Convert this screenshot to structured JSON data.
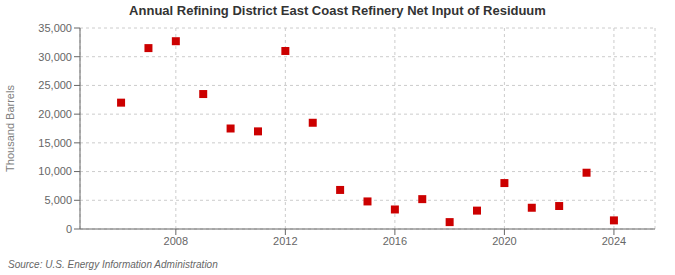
{
  "chart_data": {
    "type": "scatter",
    "title": "Annual Refining District East Coast Refinery Net Input of Residuum",
    "ylabel": "Thousand Barrels",
    "annotations": [
      "Source: U.S. Energy Information Administration"
    ],
    "x": [
      2006,
      2007,
      2008,
      2009,
      2010,
      2011,
      2012,
      2013,
      2014,
      2015,
      2016,
      2017,
      2018,
      2019,
      2020,
      2021,
      2022,
      2023,
      2024
    ],
    "values": [
      22000,
      31500,
      32700,
      23500,
      17500,
      17000,
      31000,
      18500,
      6800,
      4800,
      3400,
      5200,
      1200,
      3200,
      8000,
      3700,
      4000,
      9800,
      1500
    ],
    "color": "#cc0000",
    "marker": "square",
    "xlim": [
      2004.5,
      2025.5
    ],
    "xticks": [
      2008,
      2012,
      2016,
      2020,
      2024
    ],
    "ylim": [
      0,
      35000
    ],
    "yticks": [
      0,
      {
        "value": 5000,
        "label": "5,000"
      },
      {
        "value": 10000,
        "label": "10,000"
      },
      {
        "value": 15000,
        "label": "15,000"
      },
      {
        "value": 20000,
        "label": "20,000"
      },
      {
        "value": 25000,
        "label": "25,000"
      },
      {
        "value": 30000,
        "label": "30,000"
      },
      {
        "value": 35000,
        "label": "35,000"
      }
    ],
    "grid": true
  }
}
